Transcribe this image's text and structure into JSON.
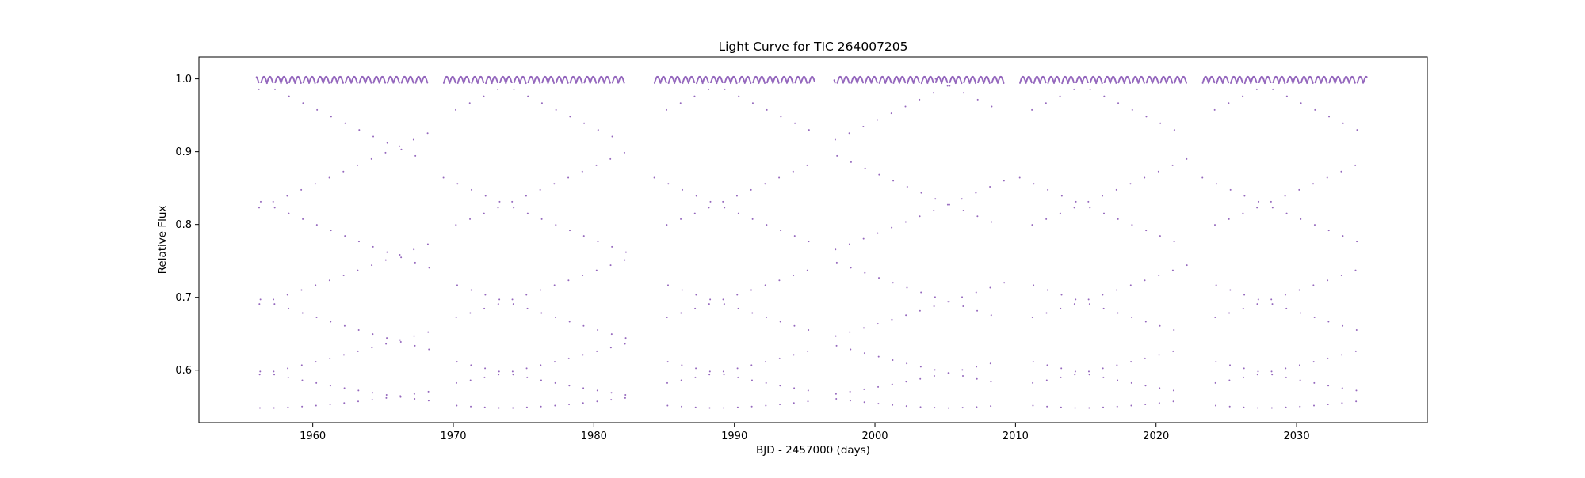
{
  "chart_data": {
    "type": "scatter",
    "title": "Light Curve for TIC 264007205",
    "xlabel": "BJD - 2457000 (days)",
    "ylabel": "Relative Flux",
    "xlim": [
      1951.9,
      2039.3
    ],
    "ylim": [
      0.528,
      1.03
    ],
    "x_ticks": [
      1960,
      1970,
      1980,
      1990,
      2000,
      2010,
      2020,
      2030
    ],
    "y_ticks": [
      0.6,
      0.7,
      0.8,
      0.9,
      1.0
    ],
    "y_tick_labels": [
      "0.6",
      "0.7",
      "0.8",
      "0.9",
      "1.0"
    ],
    "grid": false,
    "legend": "none",
    "marker_color": "#9467bd",
    "series": [
      {
        "segments": [
          {
            "start": 1956.0,
            "end": 1968.3
          },
          {
            "start": 1969.3,
            "end": 1982.3
          },
          {
            "start": 1984.3,
            "end": 1995.7
          },
          {
            "start": 1997.1,
            "end": 2009.2
          },
          {
            "start": 2010.3,
            "end": 2022.2
          },
          {
            "start": 2023.3,
            "end": 2035.0
          }
        ],
        "baseline_flux": 1.0,
        "eclipse_min_flux": 0.548,
        "period_days": 1.0,
        "eclipse_epoch": 1956.24,
        "eclipse_half_width_days": 0.075
      }
    ]
  }
}
